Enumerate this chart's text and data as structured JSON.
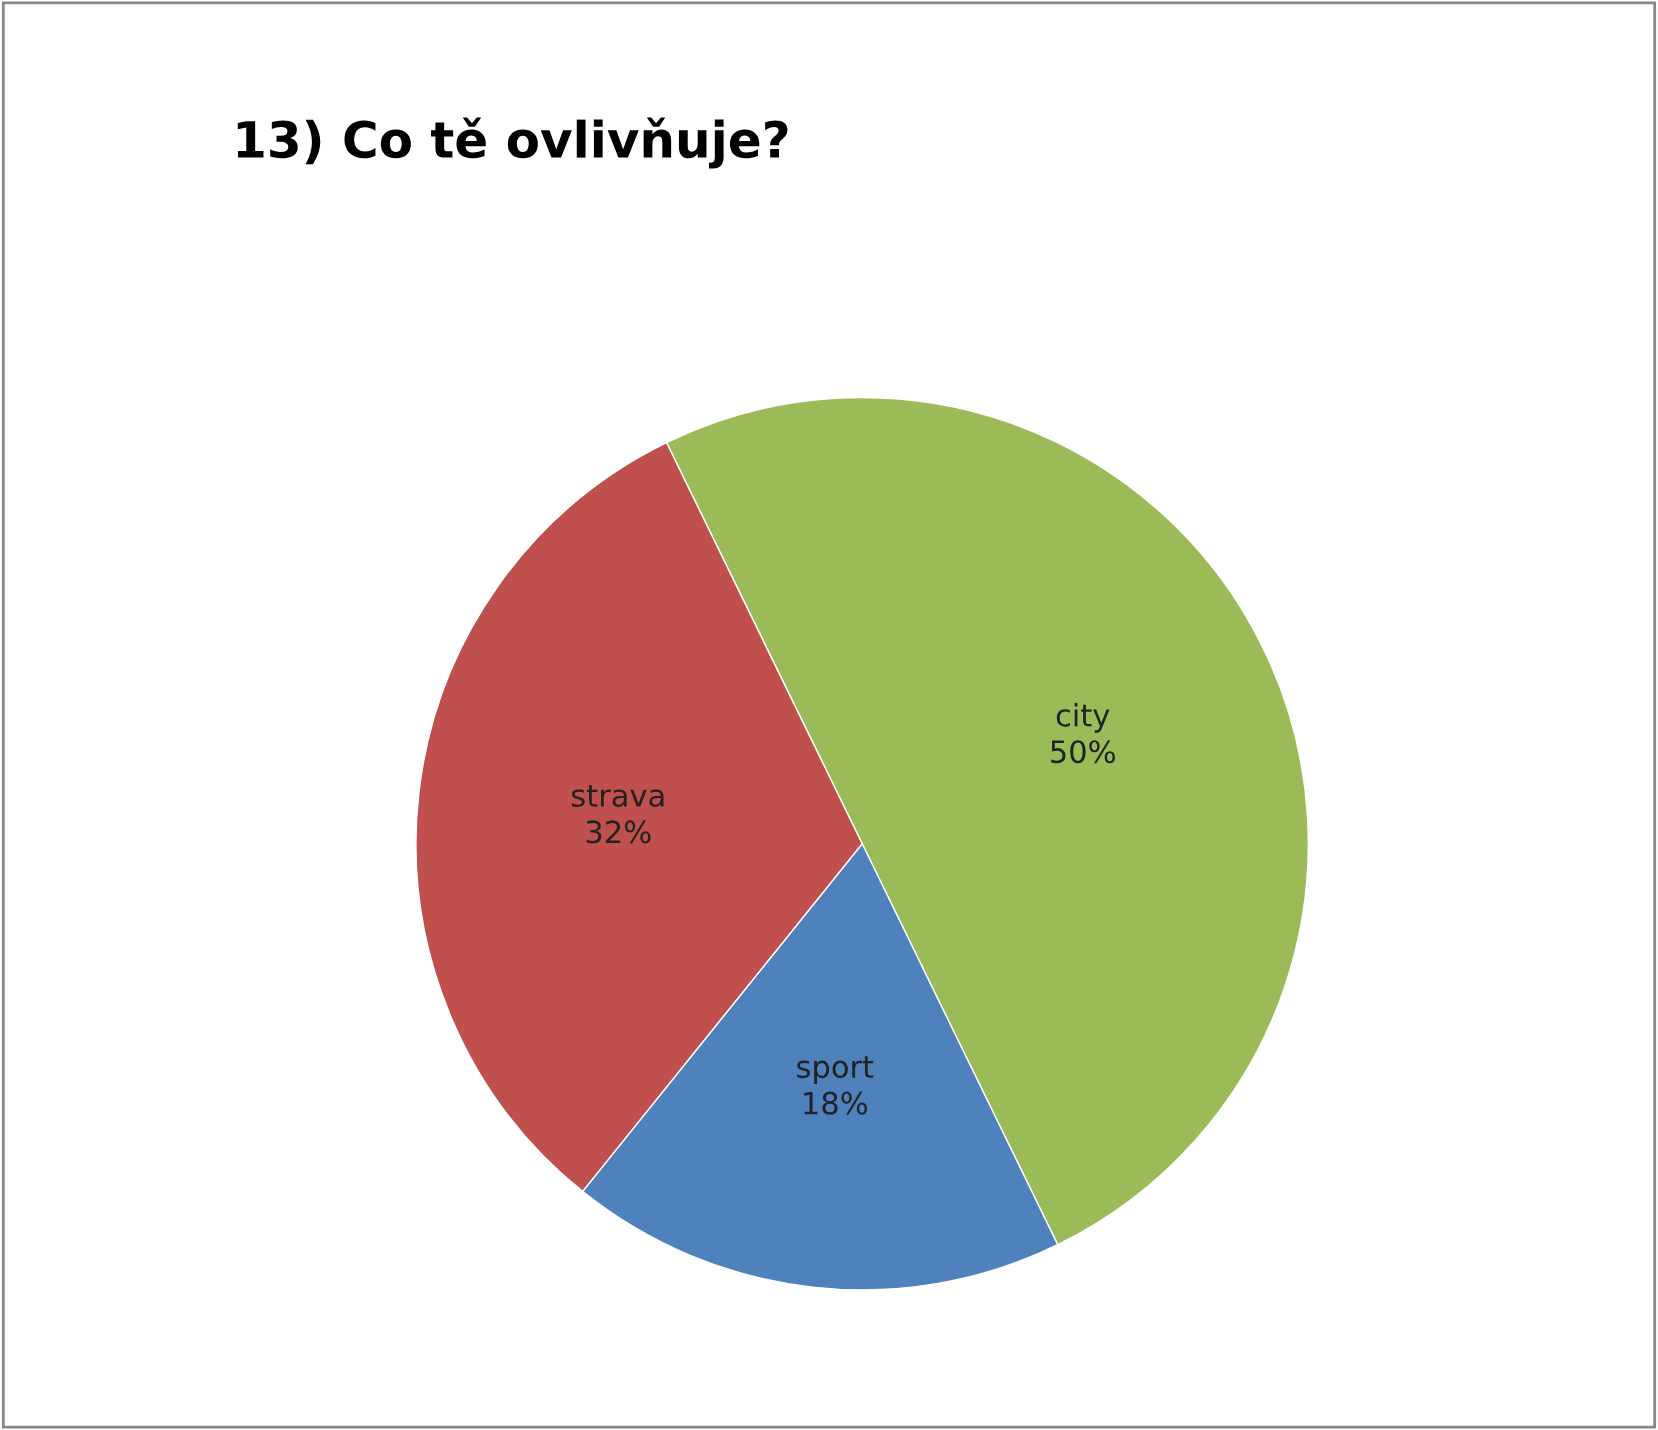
{
  "chart_data": {
    "type": "pie",
    "title": "13) Co tě ovlivňuje?",
    "categories": [
      "city",
      "sport",
      "strava"
    ],
    "values": [
      50,
      18,
      32
    ],
    "colors": [
      "#9bbb59",
      "#4f81bd",
      "#c0504d"
    ],
    "value_labels": [
      "50%",
      "18%",
      "32%"
    ],
    "legend": false
  }
}
